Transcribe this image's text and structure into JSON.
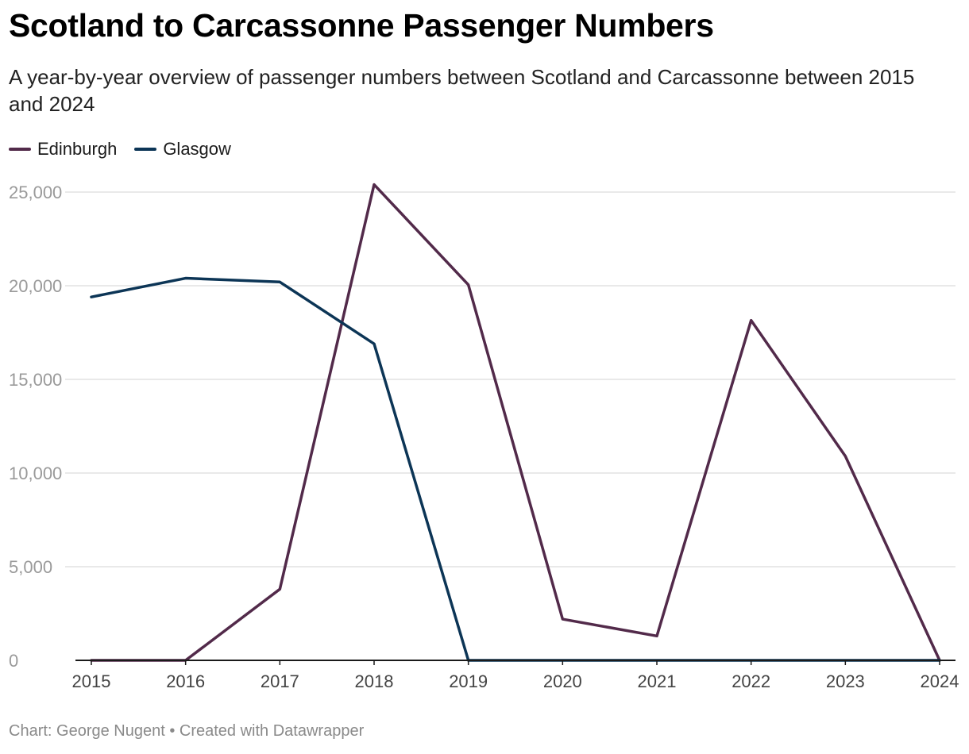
{
  "header": {
    "title": "Scotland to Carcassonne Passenger Numbers",
    "subtitle": "A year-by-year overview of passenger numbers between Scotland and Carcassonne between 2015 and 2024"
  },
  "footer": {
    "credit": "Chart: George Nugent • Created with Datawrapper"
  },
  "colors": {
    "edinburgh": "#522a4a",
    "glasgow": "#0c3556",
    "grid": "#e2e2e2",
    "baseline": "#1a1a1a"
  },
  "legend": [
    {
      "label": "Edinburgh",
      "color": "#522a4a"
    },
    {
      "label": "Glasgow",
      "color": "#0c3556"
    }
  ],
  "chart_data": {
    "type": "line",
    "title": "Scotland to Carcassonne Passenger Numbers",
    "xlabel": "",
    "ylabel": "",
    "x": [
      2015,
      2016,
      2017,
      2018,
      2019,
      2020,
      2021,
      2022,
      2023,
      2024
    ],
    "x_tick_labels": [
      "2015",
      "2016",
      "2017",
      "2018",
      "2019",
      "2020",
      "2021",
      "2022",
      "2023",
      "2024"
    ],
    "y_ticks": [
      0,
      5000,
      10000,
      15000,
      20000,
      25000
    ],
    "y_tick_labels": [
      "0",
      "5,000",
      "10,000",
      "15,000",
      "20,000",
      "25,000"
    ],
    "ylim": [
      0,
      25000
    ],
    "grid": true,
    "legend_position": "top-left",
    "series": [
      {
        "name": "Edinburgh",
        "color": "#522a4a",
        "values": [
          0,
          0,
          3800,
          25400,
          20050,
          2200,
          1300,
          18150,
          10900,
          0
        ]
      },
      {
        "name": "Glasgow",
        "color": "#0c3556",
        "values": [
          19400,
          20400,
          20200,
          16900,
          0,
          0,
          0,
          0,
          0,
          0
        ]
      }
    ]
  }
}
